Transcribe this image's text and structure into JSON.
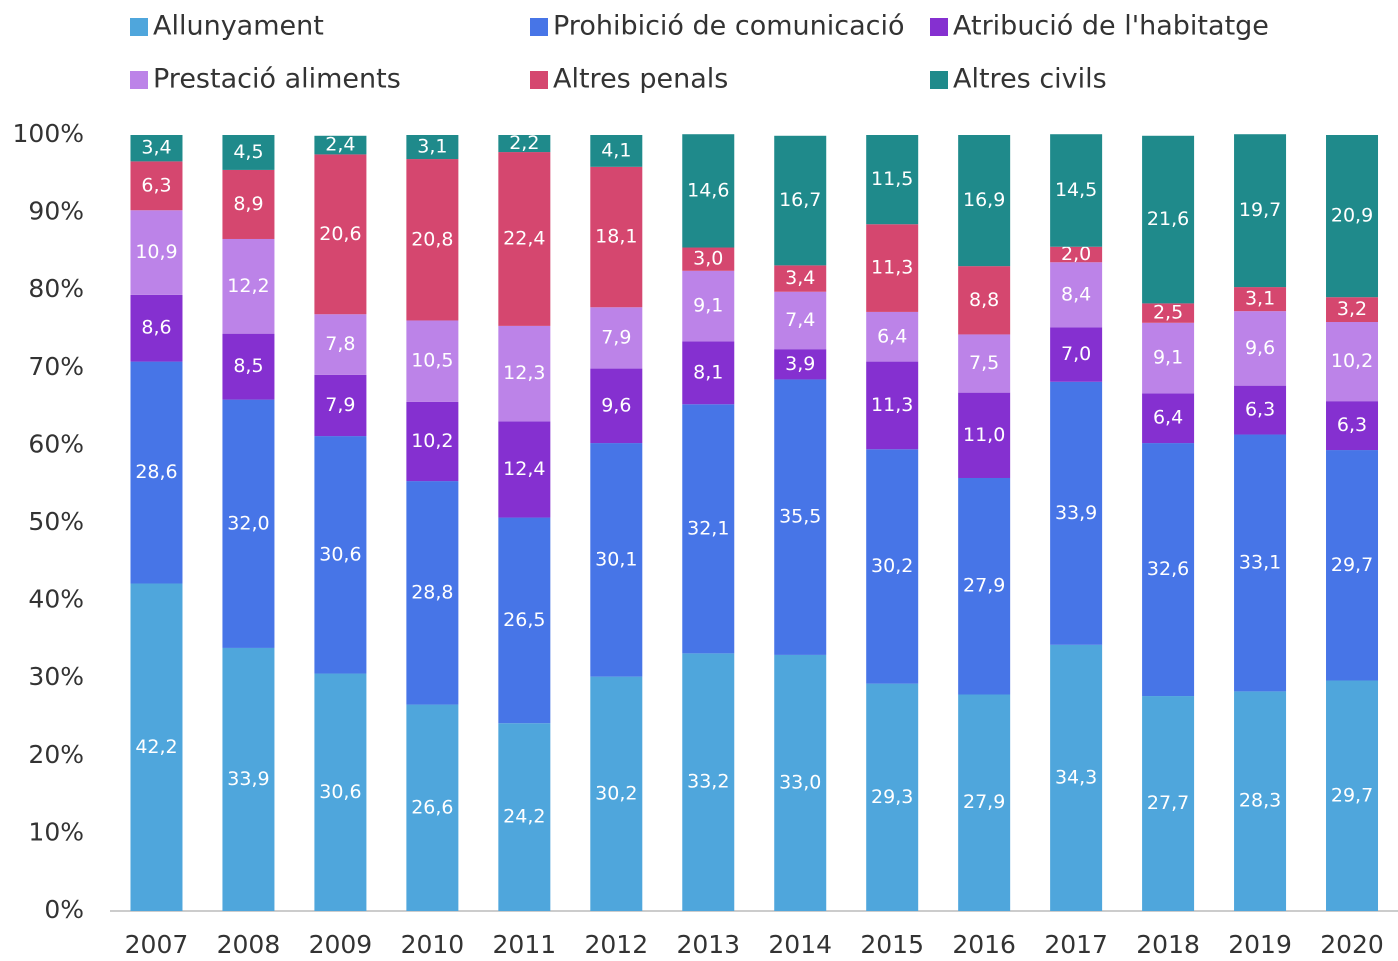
{
  "chart_data": {
    "type": "stacked_bar",
    "categories": [
      "2007",
      "2008",
      "2009",
      "2010",
      "2011",
      "2012",
      "2013",
      "2014",
      "2015",
      "2016",
      "2017",
      "2018",
      "2019",
      "2020"
    ],
    "series": [
      {
        "name": "Allunyament",
        "color": "#4fa6dc",
        "values": [
          42.2,
          33.9,
          30.6,
          26.6,
          24.2,
          30.2,
          33.2,
          33.0,
          29.3,
          27.9,
          34.3,
          27.7,
          28.3,
          29.7
        ],
        "value_labels": [
          "42,2",
          "33,9",
          "30,6",
          "26,6",
          "24,2",
          "30,2",
          "33,2",
          "33,0",
          "29,3",
          "27,9",
          "34,3",
          "27,7",
          "28,3",
          "29,7"
        ]
      },
      {
        "name": "Prohibició de comunicació",
        "color": "#4775e7",
        "values": [
          28.6,
          32.0,
          30.6,
          28.8,
          26.5,
          30.1,
          32.1,
          35.5,
          30.2,
          27.9,
          33.9,
          32.6,
          33.1,
          29.7
        ],
        "value_labels": [
          "28,6",
          "32,0",
          "30,6",
          "28,8",
          "26,5",
          "30,1",
          "32,1",
          "35,5",
          "30,2",
          "27,9",
          "33,9",
          "32,6",
          "33,1",
          "29,7"
        ]
      },
      {
        "name": "Atribució de l'habitatge",
        "color": "#8530d0",
        "values": [
          8.6,
          8.5,
          7.9,
          10.2,
          12.4,
          9.6,
          8.1,
          3.9,
          11.3,
          11.0,
          7.0,
          6.4,
          6.3,
          6.3
        ],
        "value_labels": [
          "8,6",
          "8,5",
          "7,9",
          "10,2",
          "12,4",
          "9,6",
          "8,1",
          "3,9",
          "11,3",
          "11,0",
          "7,0",
          "6,4",
          "6,3",
          "6,3"
        ]
      },
      {
        "name": "Prestació aliments",
        "color": "#bc83e8",
        "values": [
          10.9,
          12.2,
          7.8,
          10.5,
          12.3,
          7.9,
          9.1,
          7.4,
          6.4,
          7.5,
          8.4,
          9.1,
          9.6,
          10.2
        ],
        "value_labels": [
          "10,9",
          "12,2",
          "7,8",
          "10,5",
          "12,3",
          "7,9",
          "9,1",
          "7,4",
          "6,4",
          "7,5",
          "8,4",
          "9,1",
          "9,6",
          "10,2"
        ]
      },
      {
        "name": "Altres penals",
        "color": "#d5476f",
        "values": [
          6.3,
          8.9,
          20.6,
          20.8,
          22.4,
          18.1,
          3.0,
          3.4,
          11.3,
          8.8,
          2.0,
          2.5,
          3.1,
          3.2
        ],
        "value_labels": [
          "6,3",
          "8,9",
          "20,6",
          "20,8",
          "22,4",
          "18,1",
          "3,0",
          "3,4",
          "11,3",
          "8,8",
          "2,0",
          "2,5",
          "3,1",
          "3,2"
        ]
      },
      {
        "name": "Altres civils",
        "color": "#1f8a8b",
        "values": [
          3.4,
          4.5,
          2.4,
          3.1,
          2.2,
          4.1,
          14.6,
          16.7,
          11.5,
          16.9,
          14.5,
          21.6,
          19.7,
          20.9
        ],
        "value_labels": [
          "3,4",
          "4,5",
          "2,4",
          "3,1",
          "2,2",
          "4,1",
          "14,6",
          "16,7",
          "11,5",
          "16,9",
          "14,5",
          "21,6",
          "19,7",
          "20,9"
        ]
      }
    ],
    "ylim": [
      0,
      100
    ],
    "yticks": [
      {
        "value": 0,
        "label": "0%"
      },
      {
        "value": 10,
        "label": "10%"
      },
      {
        "value": 20,
        "label": "20%"
      },
      {
        "value": 30,
        "label": "30%"
      },
      {
        "value": 40,
        "label": "40%"
      },
      {
        "value": 50,
        "label": "50%"
      },
      {
        "value": 60,
        "label": "60%"
      },
      {
        "value": 70,
        "label": "70%"
      },
      {
        "value": 80,
        "label": "80%"
      },
      {
        "value": 90,
        "label": "90%"
      },
      {
        "value": 100,
        "label": "100%"
      }
    ],
    "grid": false,
    "legend": "top"
  }
}
